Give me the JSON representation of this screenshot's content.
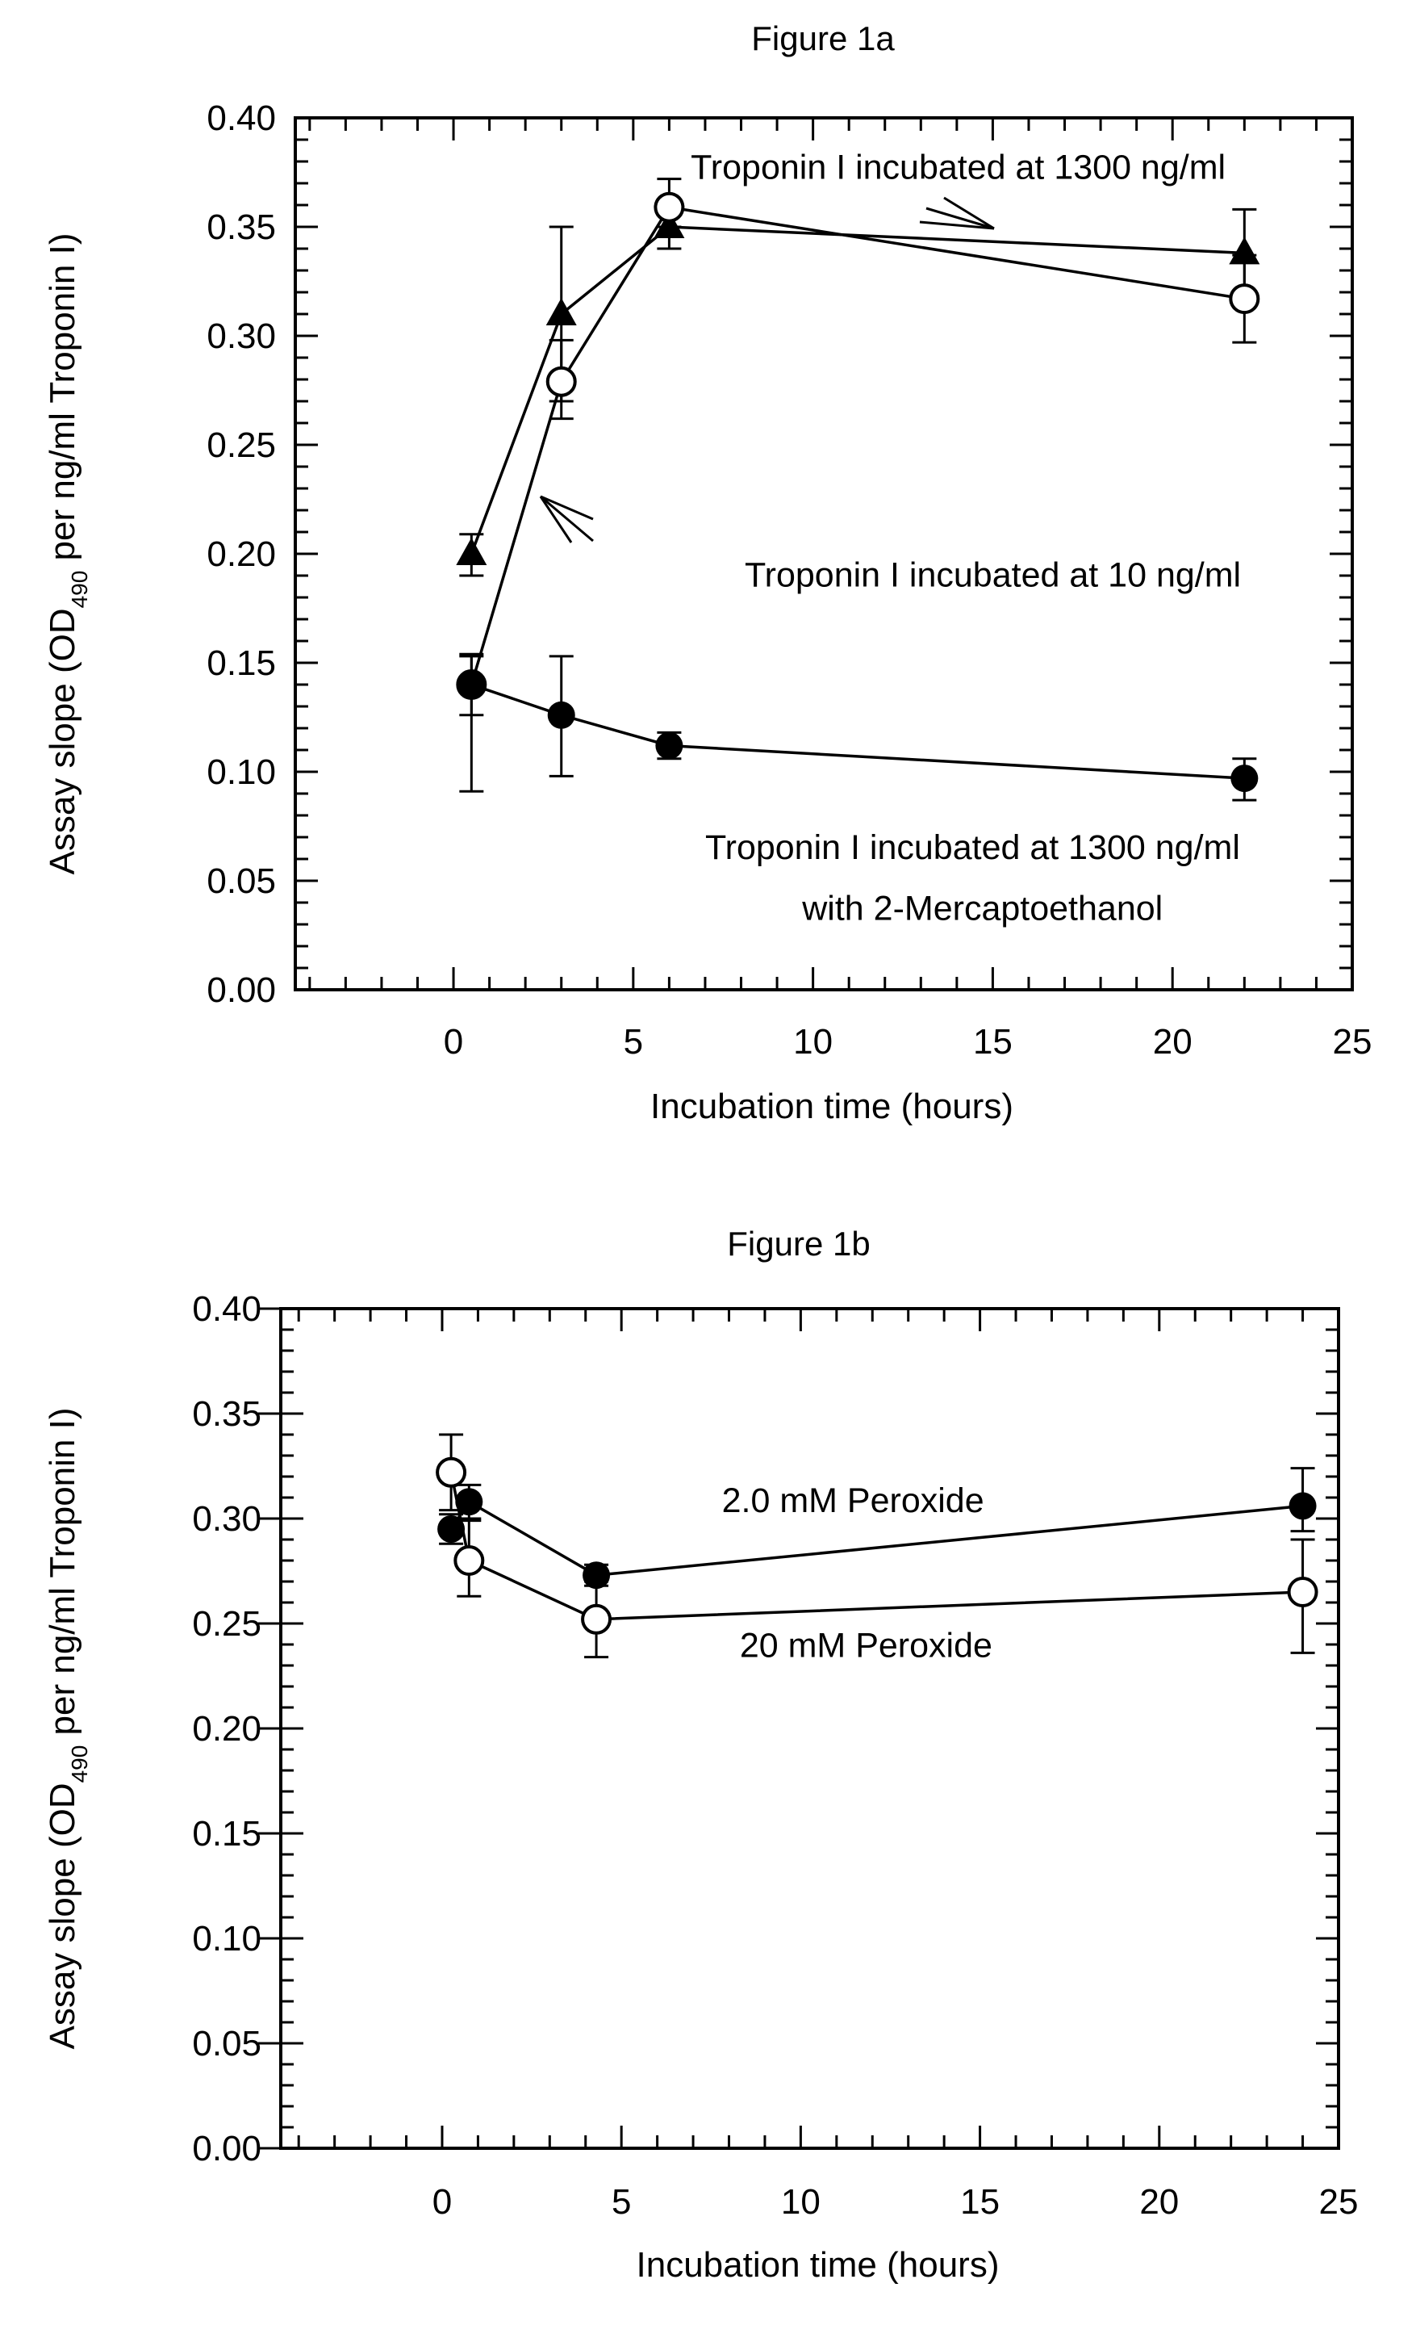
{
  "chart_data": [
    {
      "type": "scatter",
      "title": "Figure 1a",
      "xlabel": "Incubation time (hours)",
      "ylabel": "Assay slope (OD490 per ng/ml Troponin I)",
      "ylabel_parts": {
        "pre": "Assay slope (OD",
        "sub": "490",
        "post": "  per ng/ml Troponin I)"
      },
      "xlim": [
        -4.4,
        25
      ],
      "ylim": [
        0,
        0.4
      ],
      "xticks": [
        0,
        5,
        10,
        15,
        20,
        25
      ],
      "xtick_labels": [
        "0",
        "5",
        "10",
        "15",
        "20",
        "25"
      ],
      "yticks": [
        0,
        0.05,
        0.1,
        0.15,
        0.2,
        0.25,
        0.3,
        0.35,
        0.4
      ],
      "ytick_labels": [
        "0.00",
        "0.05",
        "0.10",
        "0.15",
        "0.20",
        "0.25",
        "0.30",
        "0.35",
        "0.40"
      ],
      "grid": false,
      "series": [
        {
          "name": "Troponin I incubated at 1300 ng/ml",
          "marker": "triangle-filled",
          "x": [
            0.5,
            3,
            6,
            22
          ],
          "y": [
            0.2,
            0.31,
            0.35,
            0.338
          ],
          "err_low": [
            0.19,
            0.27,
            0.34,
            0.318
          ],
          "err_high": [
            0.209,
            0.35,
            0.36,
            0.358
          ]
        },
        {
          "name": "Troponin I incubated at 10 ng/ml",
          "marker": "circle-open",
          "x": [
            0.5,
            3,
            6,
            22
          ],
          "y": [
            0.14,
            0.279,
            0.359,
            0.317
          ],
          "err_low": [
            0.126,
            0.262,
            0.35,
            0.297
          ],
          "err_high": [
            0.154,
            0.298,
            0.372,
            0.337
          ]
        },
        {
          "name": "Troponin I incubated at 1300 ng/ml with 2-Mercaptoethanol",
          "marker": "circle-filled",
          "x": [
            0.5,
            3,
            6,
            22
          ],
          "y": [
            0.14,
            0.126,
            0.112,
            0.097
          ],
          "err_low": [
            0.091,
            0.098,
            0.106,
            0.087
          ],
          "err_high": [
            0.153,
            0.153,
            0.118,
            0.106
          ]
        }
      ],
      "annotations": [
        {
          "text": "Troponin I incubated at 1300 ng/ml",
          "x": 6.6,
          "y": 0.372
        },
        {
          "text": "Troponin I incubated at 10 ng/ml",
          "x": 8.1,
          "y": 0.185
        },
        {
          "text": "Troponin I incubated at 1300 ng/ml",
          "x": 7.0,
          "y": 0.06
        },
        {
          "text": "with 2-Mercaptoethanol",
          "x": 9.7,
          "y": 0.032
        }
      ]
    },
    {
      "type": "scatter",
      "title": "Figure 1b",
      "xlabel": "Incubation time (hours)",
      "ylabel": "Assay slope (OD490 per ng/ml Troponin I)",
      "ylabel_parts": {
        "pre": "Assay slope (OD",
        "sub": "490",
        "post": " per ng/ml Troponin I)"
      },
      "xlim": [
        -4.5,
        25
      ],
      "ylim": [
        0,
        0.4
      ],
      "xticks": [
        0,
        5,
        10,
        15,
        20,
        25
      ],
      "xtick_labels": [
        "0",
        "5",
        "10",
        "15",
        "20",
        "25"
      ],
      "yticks": [
        0,
        0.05,
        0.1,
        0.15,
        0.2,
        0.25,
        0.3,
        0.35,
        0.4
      ],
      "ytick_labels": [
        "0.00",
        "0.05",
        "0.10",
        "0.15",
        "0.20",
        "0.25",
        "0.30",
        "0.35",
        "0.40"
      ],
      "grid": false,
      "series": [
        {
          "name": "2.0 mM Peroxide",
          "marker": "circle-filled",
          "x": [
            0.25,
            0.75,
            4.3,
            24
          ],
          "y": [
            0.295,
            0.308,
            0.273,
            0.306
          ],
          "err_low": [
            0.288,
            0.3,
            0.268,
            0.294
          ],
          "err_high": [
            0.302,
            0.316,
            0.278,
            0.324
          ]
        },
        {
          "name": "20 mM Peroxide",
          "marker": "circle-open",
          "x": [
            0.25,
            0.75,
            4.3,
            24
          ],
          "y": [
            0.322,
            0.28,
            0.252,
            0.265
          ],
          "err_low": [
            0.304,
            0.263,
            0.234,
            0.236
          ],
          "err_high": [
            0.34,
            0.299,
            0.27,
            0.29
          ]
        }
      ],
      "annotations": [
        {
          "text": "2.0 mM Peroxide",
          "x": 7.8,
          "y": 0.303
        },
        {
          "text": "20 mM Peroxide",
          "x": 8.3,
          "y": 0.234
        }
      ]
    }
  ]
}
